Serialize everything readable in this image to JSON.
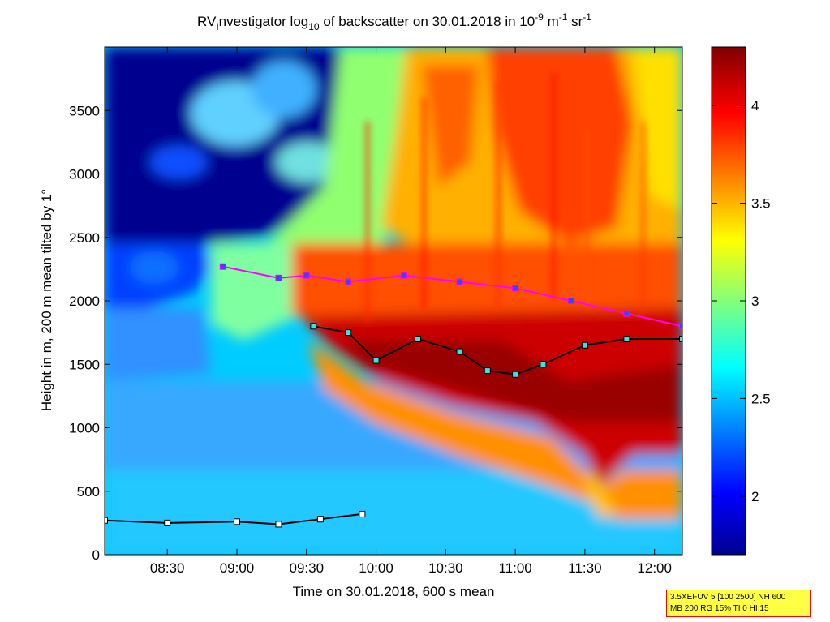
{
  "chart_data": {
    "type": "heatmap",
    "title_parts": {
      "pre": "RV",
      "sub1": "I",
      "mid": "nvestigator log",
      "sub2": "10",
      "post": " of backscatter on 30.01.2018 in 10",
      "sup1": "-9",
      "unit1": " m",
      "sup2": "-1",
      "unit2": " sr",
      "sup3": "-1"
    },
    "xlabel": "Time on 30.01.2018, 600 s mean",
    "ylabel": "Height in m, 200 m mean tilted by 1°",
    "x_range_hours": [
      8.05,
      12.2
    ],
    "x_ticks": [
      "08:30",
      "09:00",
      "09:30",
      "10:00",
      "10:30",
      "11:00",
      "11:30",
      "12:00"
    ],
    "x_tick_hours": [
      8.5,
      9.0,
      9.5,
      10.0,
      10.5,
      11.0,
      11.5,
      12.0
    ],
    "ylim": [
      0,
      4000
    ],
    "y_ticks": [
      0,
      500,
      1000,
      1500,
      2000,
      2500,
      3000,
      3500
    ],
    "colorbar": {
      "range": [
        1.7,
        4.3
      ],
      "ticks": [
        2,
        2.5,
        3,
        3.5,
        4
      ],
      "tick_labels": [
        "2",
        "2.5",
        "3",
        "3.5",
        "4"
      ]
    },
    "colormap": [
      "#00008f",
      "#0000ff",
      "#0080ff",
      "#00ffff",
      "#80ff80",
      "#ffff00",
      "#ff8000",
      "#ff0000",
      "#800000"
    ],
    "layer_boundaries": [
      {
        "name": "surface-layer",
        "points": [
          [
            8.05,
            270
          ],
          [
            8.5,
            250
          ],
          [
            9.0,
            260
          ],
          [
            9.3,
            240
          ],
          [
            9.6,
            280
          ],
          [
            9.9,
            320
          ]
        ]
      },
      {
        "name": "aerosol-top",
        "points": [
          [
            8.9,
            2270
          ],
          [
            9.3,
            2180
          ],
          [
            9.5,
            2200
          ],
          [
            9.8,
            2150
          ],
          [
            10.2,
            2200
          ],
          [
            10.6,
            2150
          ],
          [
            11.0,
            2100
          ],
          [
            11.4,
            2000
          ],
          [
            11.8,
            1900
          ],
          [
            12.2,
            1800
          ]
        ]
      },
      {
        "name": "cloud-top",
        "points": [
          [
            9.55,
            1800
          ],
          [
            9.8,
            1750
          ],
          [
            10.0,
            1530
          ],
          [
            10.3,
            1700
          ],
          [
            10.6,
            1600
          ],
          [
            10.8,
            1450
          ],
          [
            11.0,
            1420
          ],
          [
            11.2,
            1500
          ],
          [
            11.5,
            1650
          ],
          [
            11.8,
            1700
          ],
          [
            12.2,
            1700
          ]
        ]
      }
    ]
  },
  "info_box": {
    "line1": "3.5XEFUV 5 [100 2500] NH 600",
    "line2": "MB 200 RG 15% TI 0 HI 15"
  },
  "colors": {
    "axis": "#000000",
    "info_bg": "#ffff44",
    "info_border": "#ff0000"
  }
}
